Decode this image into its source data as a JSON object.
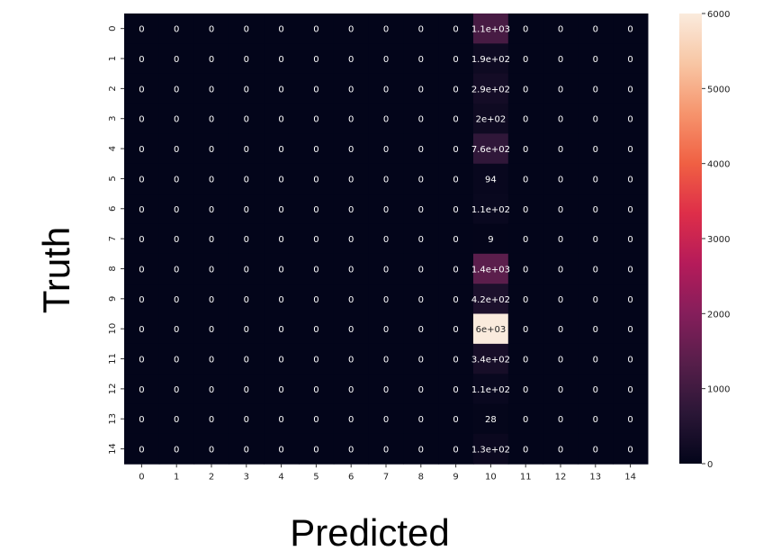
{
  "chart_data": {
    "type": "heatmap",
    "title": "",
    "xlabel": "Predicted",
    "ylabel": "Truth",
    "x_categories": [
      "0",
      "1",
      "2",
      "3",
      "4",
      "5",
      "6",
      "7",
      "8",
      "9",
      "10",
      "11",
      "12",
      "13",
      "14"
    ],
    "y_categories": [
      "0",
      "1",
      "2",
      "3",
      "4",
      "5",
      "6",
      "7",
      "8",
      "9",
      "10",
      "11",
      "12",
      "13",
      "14"
    ],
    "values": [
      [
        0,
        0,
        0,
        0,
        0,
        0,
        0,
        0,
        0,
        0,
        1100,
        0,
        0,
        0,
        0
      ],
      [
        0,
        0,
        0,
        0,
        0,
        0,
        0,
        0,
        0,
        0,
        190,
        0,
        0,
        0,
        0
      ],
      [
        0,
        0,
        0,
        0,
        0,
        0,
        0,
        0,
        0,
        0,
        290,
        0,
        0,
        0,
        0
      ],
      [
        0,
        0,
        0,
        0,
        0,
        0,
        0,
        0,
        0,
        0,
        200,
        0,
        0,
        0,
        0
      ],
      [
        0,
        0,
        0,
        0,
        0,
        0,
        0,
        0,
        0,
        0,
        760,
        0,
        0,
        0,
        0
      ],
      [
        0,
        0,
        0,
        0,
        0,
        0,
        0,
        0,
        0,
        0,
        94,
        0,
        0,
        0,
        0
      ],
      [
        0,
        0,
        0,
        0,
        0,
        0,
        0,
        0,
        0,
        0,
        110,
        0,
        0,
        0,
        0
      ],
      [
        0,
        0,
        0,
        0,
        0,
        0,
        0,
        0,
        0,
        0,
        9,
        0,
        0,
        0,
        0
      ],
      [
        0,
        0,
        0,
        0,
        0,
        0,
        0,
        0,
        0,
        0,
        1400,
        0,
        0,
        0,
        0
      ],
      [
        0,
        0,
        0,
        0,
        0,
        0,
        0,
        0,
        0,
        0,
        420,
        0,
        0,
        0,
        0
      ],
      [
        0,
        0,
        0,
        0,
        0,
        0,
        0,
        0,
        0,
        0,
        6000,
        0,
        0,
        0,
        0
      ],
      [
        0,
        0,
        0,
        0,
        0,
        0,
        0,
        0,
        0,
        0,
        340,
        0,
        0,
        0,
        0
      ],
      [
        0,
        0,
        0,
        0,
        0,
        0,
        0,
        0,
        0,
        0,
        110,
        0,
        0,
        0,
        0
      ],
      [
        0,
        0,
        0,
        0,
        0,
        0,
        0,
        0,
        0,
        0,
        28,
        0,
        0,
        0,
        0
      ],
      [
        0,
        0,
        0,
        0,
        0,
        0,
        0,
        0,
        0,
        0,
        130,
        0,
        0,
        0,
        0
      ]
    ],
    "annotations": [
      [
        "0",
        "0",
        "0",
        "0",
        "0",
        "0",
        "0",
        "0",
        "0",
        "0",
        "1.1e+03",
        "0",
        "0",
        "0",
        "0"
      ],
      [
        "0",
        "0",
        "0",
        "0",
        "0",
        "0",
        "0",
        "0",
        "0",
        "0",
        "1.9e+02",
        "0",
        "0",
        "0",
        "0"
      ],
      [
        "0",
        "0",
        "0",
        "0",
        "0",
        "0",
        "0",
        "0",
        "0",
        "0",
        "2.9e+02",
        "0",
        "0",
        "0",
        "0"
      ],
      [
        "0",
        "0",
        "0",
        "0",
        "0",
        "0",
        "0",
        "0",
        "0",
        "0",
        "2e+02",
        "0",
        "0",
        "0",
        "0"
      ],
      [
        "0",
        "0",
        "0",
        "0",
        "0",
        "0",
        "0",
        "0",
        "0",
        "0",
        "7.6e+02",
        "0",
        "0",
        "0",
        "0"
      ],
      [
        "0",
        "0",
        "0",
        "0",
        "0",
        "0",
        "0",
        "0",
        "0",
        "0",
        "94",
        "0",
        "0",
        "0",
        "0"
      ],
      [
        "0",
        "0",
        "0",
        "0",
        "0",
        "0",
        "0",
        "0",
        "0",
        "0",
        "1.1e+02",
        "0",
        "0",
        "0",
        "0"
      ],
      [
        "0",
        "0",
        "0",
        "0",
        "0",
        "0",
        "0",
        "0",
        "0",
        "0",
        "9",
        "0",
        "0",
        "0",
        "0"
      ],
      [
        "0",
        "0",
        "0",
        "0",
        "0",
        "0",
        "0",
        "0",
        "0",
        "0",
        "1.4e+03",
        "0",
        "0",
        "0",
        "0"
      ],
      [
        "0",
        "0",
        "0",
        "0",
        "0",
        "0",
        "0",
        "0",
        "0",
        "0",
        "4.2e+02",
        "0",
        "0",
        "0",
        "0"
      ],
      [
        "0",
        "0",
        "0",
        "0",
        "0",
        "0",
        "0",
        "0",
        "0",
        "0",
        "6e+03",
        "0",
        "0",
        "0",
        "0"
      ],
      [
        "0",
        "0",
        "0",
        "0",
        "0",
        "0",
        "0",
        "0",
        "0",
        "0",
        "3.4e+02",
        "0",
        "0",
        "0",
        "0"
      ],
      [
        "0",
        "0",
        "0",
        "0",
        "0",
        "0",
        "0",
        "0",
        "0",
        "0",
        "1.1e+02",
        "0",
        "0",
        "0",
        "0"
      ],
      [
        "0",
        "0",
        "0",
        "0",
        "0",
        "0",
        "0",
        "0",
        "0",
        "0",
        "28",
        "0",
        "0",
        "0",
        "0"
      ],
      [
        "0",
        "0",
        "0",
        "0",
        "0",
        "0",
        "0",
        "0",
        "0",
        "0",
        "1.3e+02",
        "0",
        "0",
        "0",
        "0"
      ]
    ],
    "colorbar": {
      "vmin": 0,
      "vmax": 6000,
      "ticks": [
        0,
        1000,
        2000,
        3000,
        4000,
        5000,
        6000
      ],
      "colormap": "rocket",
      "colormap_stops": [
        "#03051a",
        "#2a1636",
        "#561e4a",
        "#851e5b",
        "#b51b5a",
        "#de2e49",
        "#f06043",
        "#f6946d",
        "#f8c6a4",
        "#faebdd"
      ]
    },
    "grid": false,
    "legend": "colorbar-right"
  }
}
